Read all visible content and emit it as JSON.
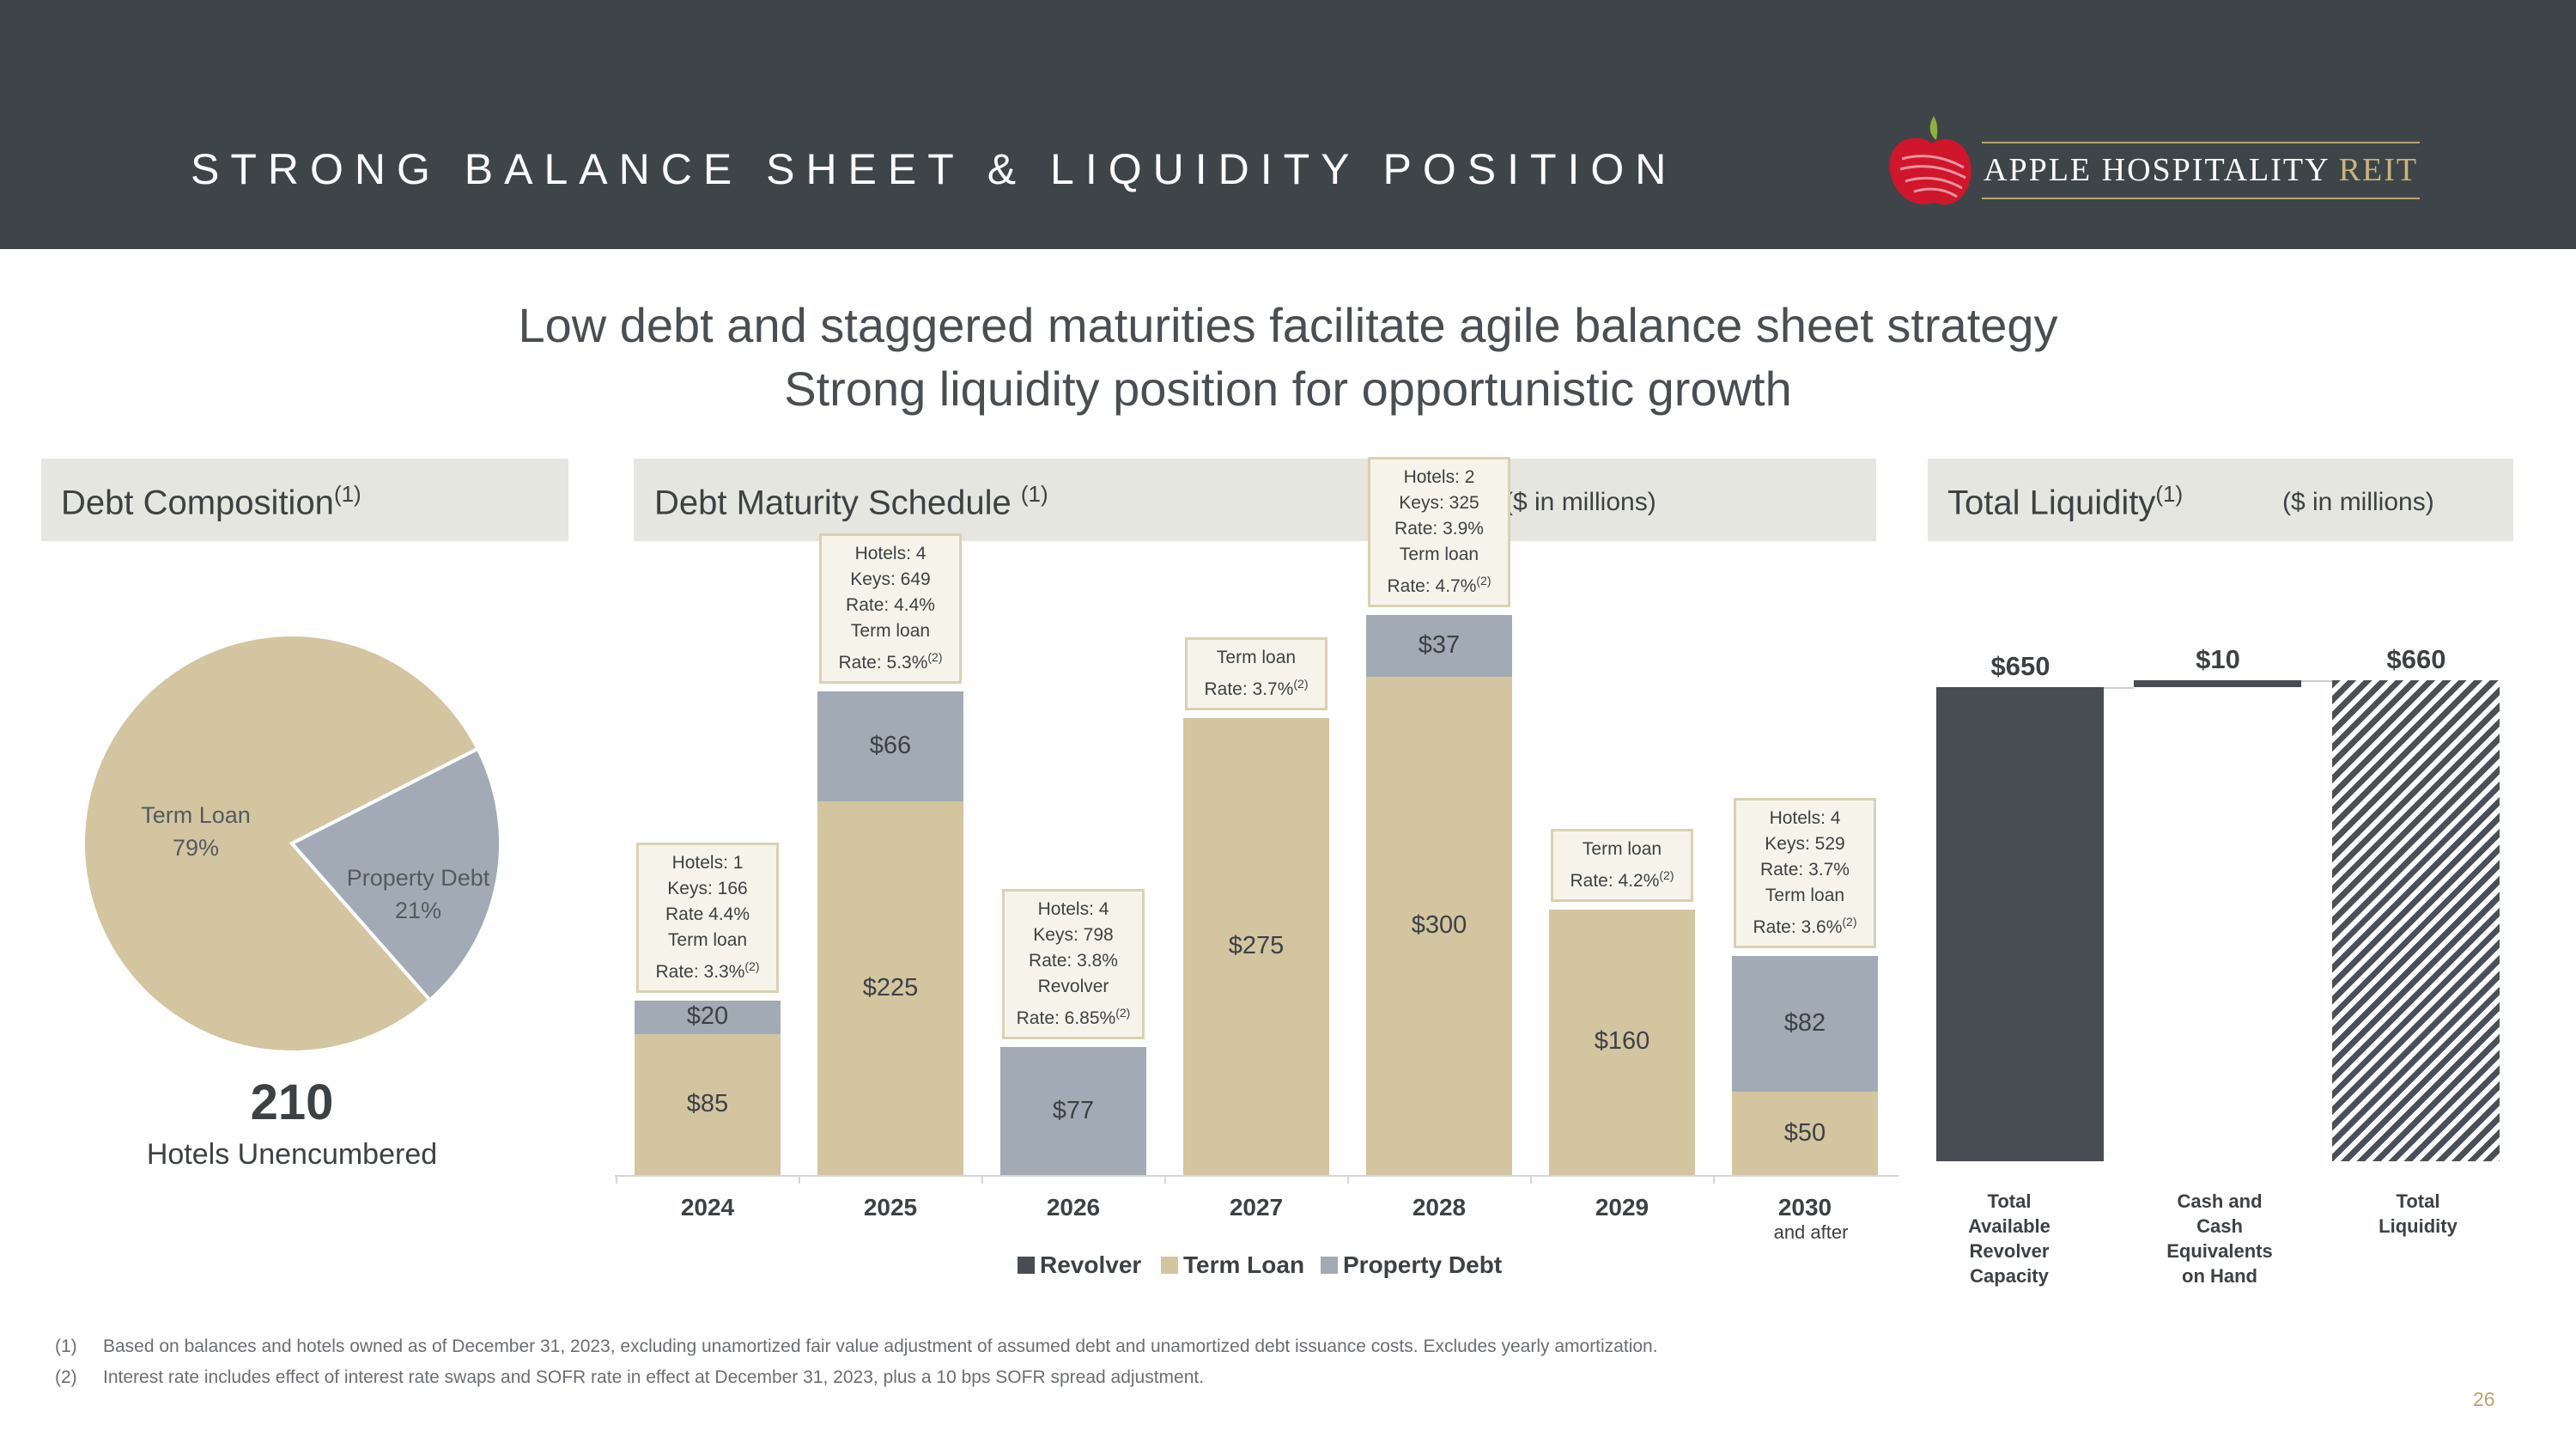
{
  "header": {
    "title": "STRONG BALANCE SHEET & LIQUIDITY POSITION",
    "brand_main": "APPLE HOSPITALITY",
    "brand_reit": "REIT"
  },
  "subtitle": {
    "line1": "Low debt and staggered maturities facilitate agile balance sheet strategy",
    "line2": "Strong liquidity position for opportunistic growth"
  },
  "debt_composition": {
    "title": "Debt Composition",
    "footnote_ref": "(1)",
    "slices": [
      {
        "label": "Term Loan",
        "pct": "79%",
        "value": 79
      },
      {
        "label": "Property Debt",
        "pct": "21%",
        "value": 21
      }
    ],
    "big_number": "210",
    "big_label": "Hotels Unencumbered"
  },
  "maturity": {
    "title": "Debt Maturity Schedule",
    "footnote_ref": "(1)",
    "units": "($ in millions)",
    "legend": [
      "Revolver",
      "Term Loan",
      "Property Debt"
    ],
    "years": [
      {
        "label": "2024",
        "sub": "",
        "segments": [
          {
            "type": "Term Loan",
            "value": 85,
            "label": "$85"
          },
          {
            "type": "Property Debt",
            "value": 20,
            "label": "$20"
          }
        ],
        "callout": [
          "Hotels: 1",
          "Keys: 166",
          "Rate 4.4%",
          "Term loan",
          "Rate: 3.3%"
        ]
      },
      {
        "label": "2025",
        "sub": "",
        "segments": [
          {
            "type": "Term Loan",
            "value": 225,
            "label": "$225"
          },
          {
            "type": "Property Debt",
            "value": 66,
            "label": "$66"
          }
        ],
        "callout": [
          "Hotels: 4",
          "Keys: 649",
          "Rate: 4.4%",
          "Term loan",
          "Rate: 5.3%"
        ]
      },
      {
        "label": "2026",
        "sub": "",
        "segments": [
          {
            "type": "Property Debt",
            "value": 77,
            "label": "$77"
          }
        ],
        "callout": [
          "Hotels: 4",
          "Keys: 798",
          "Rate: 3.8%",
          "Revolver",
          "Rate: 6.85%"
        ]
      },
      {
        "label": "2027",
        "sub": "",
        "segments": [
          {
            "type": "Term Loan",
            "value": 275,
            "label": "$275"
          }
        ],
        "callout": [
          "Term loan",
          "Rate: 3.7%"
        ]
      },
      {
        "label": "2028",
        "sub": "",
        "segments": [
          {
            "type": "Term Loan",
            "value": 300,
            "label": "$300"
          },
          {
            "type": "Property Debt",
            "value": 37,
            "label": "$37"
          }
        ],
        "callout": [
          "Hotels: 2",
          "Keys: 325",
          "Rate: 3.9%",
          "Term loan",
          "Rate: 4.7%"
        ]
      },
      {
        "label": "2029",
        "sub": "",
        "segments": [
          {
            "type": "Term Loan",
            "value": 160,
            "label": "$160"
          }
        ],
        "callout": [
          "Term loan",
          "Rate: 4.2%"
        ]
      },
      {
        "label": "2030",
        "sub": "and after",
        "segments": [
          {
            "type": "Term Loan",
            "value": 50,
            "label": "$50"
          },
          {
            "type": "Property Debt",
            "value": 82,
            "label": "$82"
          }
        ],
        "callout": [
          "Hotels: 4",
          "Keys: 529",
          "Rate: 3.7%",
          "Term loan",
          "Rate: 3.6%"
        ]
      }
    ],
    "rate_footnote": "(2)"
  },
  "liquidity": {
    "title": "Total Liquidity",
    "footnote_ref": "(1)",
    "units": "($ in millions)",
    "bars": [
      {
        "value": 650,
        "label": "$650",
        "name": "Total Available Revolver Capacity",
        "lines": [
          "Total",
          "Available",
          "Revolver",
          "Capacity"
        ]
      },
      {
        "value": 10,
        "label": "$10",
        "name": "Cash and Cash Equivalents on Hand",
        "lines": [
          "Cash and",
          "Cash",
          "Equivalents",
          "on Hand"
        ]
      },
      {
        "value": 660,
        "label": "$660",
        "name": "Total Liquidity",
        "lines": [
          "Total",
          "Liquidity"
        ]
      }
    ]
  },
  "chart_data": [
    {
      "type": "pie",
      "title": "Debt Composition",
      "categories": [
        "Term Loan",
        "Property Debt"
      ],
      "values": [
        79,
        21
      ]
    },
    {
      "type": "bar",
      "title": "Debt Maturity Schedule",
      "ylabel": "$ in millions",
      "categories": [
        "2024",
        "2025",
        "2026",
        "2027",
        "2028",
        "2029",
        "2030 and after"
      ],
      "series": [
        {
          "name": "Revolver",
          "values": [
            0,
            0,
            0,
            0,
            0,
            0,
            0
          ]
        },
        {
          "name": "Term Loan",
          "values": [
            85,
            225,
            0,
            275,
            300,
            160,
            50
          ]
        },
        {
          "name": "Property Debt",
          "values": [
            20,
            66,
            77,
            0,
            37,
            0,
            82
          ]
        }
      ]
    },
    {
      "type": "bar",
      "title": "Total Liquidity",
      "ylabel": "$ in millions",
      "categories": [
        "Total Available Revolver Capacity",
        "Cash and Cash Equivalents on Hand",
        "Total Liquidity"
      ],
      "values": [
        650,
        10,
        660
      ]
    }
  ],
  "footnotes": [
    {
      "num": "(1)",
      "text": "Based on balances and hotels owned as of December 31, 2023, excluding unamortized fair value adjustment of assumed debt and unamortized debt issuance costs. Excludes yearly amortization."
    },
    {
      "num": "(2)",
      "text": "Interest rate includes effect of interest rate swaps and SOFR rate in effect at December 31, 2023, plus a 10 bps SOFR spread adjustment."
    }
  ],
  "page_number": "26",
  "colors": {
    "term_loan": "#d3c5a0",
    "property_debt": "#a2abb5",
    "revolver": "#474d53",
    "header_bg": "#3e4549",
    "logo_red": "#d0162b",
    "logo_green": "#8eb13c"
  }
}
